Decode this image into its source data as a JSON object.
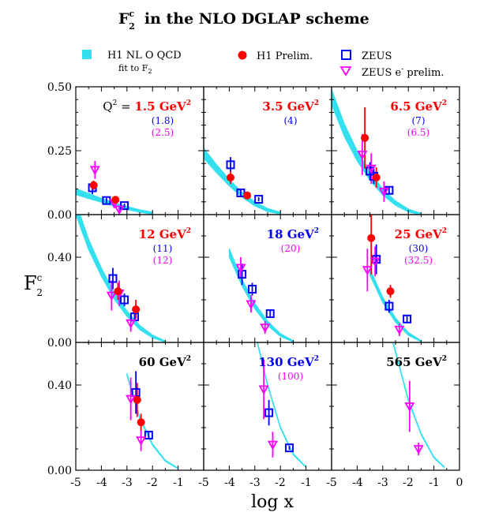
{
  "chart_data": {
    "type": "scatter",
    "title": {
      "main": "F",
      "sup": "c",
      "sub": "2",
      "rest": "in the NLO DGLAP scheme"
    },
    "xlabel": "log x",
    "ylabel": {
      "main": "F",
      "sup": "c",
      "sub": "2"
    },
    "xlim": [
      -5,
      0
    ],
    "x_ticks": [
      "-5",
      "-4",
      "-3",
      "-2",
      "-1",
      "-5",
      "-4",
      "-3",
      "-2",
      "-1",
      "-5",
      "-4",
      "-3",
      "-2",
      "-1",
      "0"
    ],
    "row_ylims": [
      [
        0,
        0.5
      ],
      [
        0,
        0.6
      ],
      [
        0,
        0.6
      ]
    ],
    "y_ticks": [
      [
        "0.00",
        "0.25",
        "0.50"
      ],
      [
        "0.00",
        "0.40"
      ],
      [
        "0.00",
        "0.40"
      ]
    ],
    "legend": {
      "band": {
        "line1": "H1 NL O QCD",
        "line2": "fit to F",
        "line2_sub": "2",
        "color": "#33e0f0"
      },
      "h1": {
        "label": "H1 Prelim.",
        "color": "#ff0000"
      },
      "zeus": {
        "label": "ZEUS",
        "color": "#0000ff"
      },
      "zeus_e": {
        "label": "ZEUS e",
        "sup": "-",
        "rest": " prelim.",
        "color": "#ff00ff"
      }
    },
    "colors": {
      "h1": "#ff0000",
      "zeus": "#0000ff",
      "zeus_e": "#ff00ff",
      "band": "#33e0f0",
      "black": "#000000"
    },
    "panels": [
      {
        "q2_prefix": "Q",
        "q2_prefix_sup": "2",
        "q2_eq": " = ",
        "q2": "1.5 GeV",
        "q2_sup": "2",
        "q2_color": "#ff0000",
        "zeus_q2": "(1.8)",
        "zeuse_q2": "(2.5)",
        "band": {
          "x": [
            -5,
            -4.5,
            -4,
            -3.5,
            -3,
            -2.5,
            -2
          ],
          "center": [
            0.09,
            0.073,
            0.056,
            0.04,
            0.026,
            0.014,
            0.006
          ],
          "width": [
            0.012,
            0.01,
            0.008,
            0.007,
            0.006,
            0.005,
            0.004
          ]
        },
        "h1": [
          {
            "x": -4.3,
            "y": 0.115,
            "err": 0.018
          },
          {
            "x": -3.45,
            "y": 0.058,
            "err": 0.012
          }
        ],
        "zeus": [
          {
            "x": -4.35,
            "y": 0.105,
            "err": 0.025
          },
          {
            "x": -3.8,
            "y": 0.055,
            "err": 0.01
          },
          {
            "x": -3.1,
            "y": 0.035,
            "err": 0.008
          }
        ],
        "zeus_e": [
          {
            "x": -4.25,
            "y": 0.175,
            "err": 0.035
          },
          {
            "x": -3.5,
            "y": 0.045,
            "err": 0.02
          },
          {
            "x": -3.3,
            "y": 0.02,
            "err": 0.01
          }
        ]
      },
      {
        "q2": "3.5 GeV",
        "q2_sup": "2",
        "q2_color": "#ff0000",
        "zeus_q2": "(4)",
        "band": {
          "x": [
            -5,
            -4.5,
            -4,
            -3.5,
            -3,
            -2.5,
            -2
          ],
          "center": [
            0.24,
            0.18,
            0.125,
            0.078,
            0.042,
            0.018,
            0.006
          ],
          "width": [
            0.02,
            0.016,
            0.013,
            0.01,
            0.008,
            0.006,
            0.004
          ]
        },
        "h1": [
          {
            "x": -3.95,
            "y": 0.145,
            "err": 0.025
          },
          {
            "x": -3.3,
            "y": 0.075,
            "err": 0.012
          }
        ],
        "zeus": [
          {
            "x": -3.95,
            "y": 0.195,
            "err": 0.03
          },
          {
            "x": -3.55,
            "y": 0.085,
            "err": 0.012
          },
          {
            "x": -2.85,
            "y": 0.06,
            "err": 0.008
          }
        ],
        "zeus_e": []
      },
      {
        "q2": "6.5 GeV",
        "q2_sup": "2",
        "q2_color": "#ff0000",
        "zeus_q2": "(7)",
        "zeuse_q2": "(6.5)",
        "band": {
          "x": [
            -5,
            -4.5,
            -4,
            -3.5,
            -3,
            -2.5,
            -2,
            -1.5
          ],
          "center": [
            0.46,
            0.33,
            0.23,
            0.15,
            0.088,
            0.045,
            0.016,
            0.002
          ],
          "width": [
            0.03,
            0.025,
            0.02,
            0.016,
            0.012,
            0.009,
            0.006,
            0.003
          ]
        },
        "h1": [
          {
            "x": -3.7,
            "y": 0.3,
            "err": 0.12
          },
          {
            "x": -3.25,
            "y": 0.145,
            "err": 0.04
          }
        ],
        "zeus": [
          {
            "x": -3.5,
            "y": 0.17,
            "err": 0.035
          },
          {
            "x": -3.35,
            "y": 0.15,
            "err": 0.03
          },
          {
            "x": -2.75,
            "y": 0.095,
            "err": 0.015
          }
        ],
        "zeus_e": [
          {
            "x": -3.8,
            "y": 0.235,
            "err": 0.08
          },
          {
            "x": -3.45,
            "y": 0.18,
            "err": 0.06
          },
          {
            "x": -2.95,
            "y": 0.09,
            "err": 0.04
          }
        ]
      },
      {
        "q2": "12 GeV",
        "q2_sup": "2",
        "q2_color": "#ff0000",
        "zeus_q2": "(11)",
        "zeuse_q2": "(12)",
        "band": {
          "x": [
            -5,
            -4.5,
            -4,
            -3.5,
            -3,
            -2.5,
            -2,
            -1.5
          ],
          "center": [
            0.63,
            0.46,
            0.33,
            0.22,
            0.135,
            0.07,
            0.028,
            0.004
          ],
          "width": [
            0.03,
            0.025,
            0.02,
            0.016,
            0.013,
            0.01,
            0.007,
            0.003
          ]
        },
        "h1": [
          {
            "x": -3.35,
            "y": 0.24,
            "err": 0.04
          },
          {
            "x": -2.65,
            "y": 0.155,
            "err": 0.045
          }
        ],
        "zeus": [
          {
            "x": -3.55,
            "y": 0.3,
            "err": 0.05
          },
          {
            "x": -3.1,
            "y": 0.2,
            "err": 0.03
          },
          {
            "x": -2.7,
            "y": 0.12,
            "err": 0.02
          }
        ],
        "zeus_e": [
          {
            "x": -3.6,
            "y": 0.22,
            "err": 0.07
          },
          {
            "x": -3.3,
            "y": 0.23,
            "err": 0.06
          },
          {
            "x": -2.85,
            "y": 0.09,
            "err": 0.04
          }
        ]
      },
      {
        "q2": "18 GeV",
        "q2_sup": "2",
        "q2_color": "#0000ff",
        "zeuse_q2": "(20)",
        "band": {
          "x": [
            -4,
            -3.5,
            -3,
            -2.5,
            -2,
            -1.5
          ],
          "center": [
            0.42,
            0.28,
            0.17,
            0.09,
            0.035,
            0.005
          ],
          "width": [
            0.02,
            0.016,
            0.013,
            0.01,
            0.007,
            0.003
          ]
        },
        "h1": [],
        "zeus": [
          {
            "x": -3.5,
            "y": 0.32,
            "err": 0.05
          },
          {
            "x": -3.1,
            "y": 0.25,
            "err": 0.03
          },
          {
            "x": -2.4,
            "y": 0.135,
            "err": 0.02
          }
        ],
        "zeus_e": [
          {
            "x": -3.55,
            "y": 0.35,
            "err": 0.05
          },
          {
            "x": -3.15,
            "y": 0.18,
            "err": 0.04
          },
          {
            "x": -2.6,
            "y": 0.07,
            "err": 0.03
          }
        ]
      },
      {
        "q2": "25 GeV",
        "q2_sup": "2",
        "q2_color": "#ff0000",
        "zeus_q2": "(30)",
        "zeuse_q2": "(32.5)",
        "band": {
          "x": [
            -3.5,
            -3,
            -2.5,
            -2,
            -1.5
          ],
          "center": [
            0.33,
            0.2,
            0.105,
            0.04,
            0.006
          ],
          "width": [
            0.016,
            0.013,
            0.01,
            0.007,
            0.003
          ]
        },
        "h1": [
          {
            "x": -3.45,
            "y": 0.49,
            "err": 0.17
          },
          {
            "x": -2.7,
            "y": 0.24,
            "err": 0.03
          }
        ],
        "zeus": [
          {
            "x": -3.25,
            "y": 0.39,
            "err": 0.07
          },
          {
            "x": -2.75,
            "y": 0.17,
            "err": 0.03
          },
          {
            "x": -2.05,
            "y": 0.11,
            "err": 0.015
          }
        ],
        "zeus_e": [
          {
            "x": -3.6,
            "y": 0.34,
            "err": 0.1
          },
          {
            "x": -3.3,
            "y": 0.38,
            "err": 0.07
          },
          {
            "x": -2.35,
            "y": 0.06,
            "err": 0.03
          }
        ]
      },
      {
        "q2": "60 GeV",
        "q2_sup": "2",
        "q2_color": "#000000",
        "band": {
          "x": [
            -3,
            -2.5,
            -2,
            -1.5,
            -1
          ],
          "center": [
            0.45,
            0.245,
            0.12,
            0.045,
            0.008
          ],
          "width": [
            0.006,
            0.005,
            0.004,
            0.003,
            0.002
          ]
        },
        "h1": [
          {
            "x": -2.6,
            "y": 0.33,
            "err": 0.08
          },
          {
            "x": -2.45,
            "y": 0.225,
            "err": 0.04
          }
        ],
        "zeus": [
          {
            "x": -2.65,
            "y": 0.365,
            "err": 0.1
          },
          {
            "x": -2.15,
            "y": 0.165,
            "err": 0.02
          }
        ],
        "zeus_e": [
          {
            "x": -2.85,
            "y": 0.335,
            "err": 0.1
          },
          {
            "x": -2.45,
            "y": 0.14,
            "err": 0.05
          }
        ]
      },
      {
        "q2": "130 GeV",
        "q2_sup": "2",
        "q2_color": "#0000ff",
        "zeuse_q2": "(100)",
        "band": {
          "x": [
            -2.9,
            -2.5,
            -2,
            -1.5,
            -1
          ],
          "center": [
            0.6,
            0.4,
            0.2,
            0.075,
            0.015
          ],
          "width": [
            0.006,
            0.005,
            0.004,
            0.003,
            0.002
          ]
        },
        "h1": [],
        "zeus": [
          {
            "x": -2.45,
            "y": 0.27,
            "err": 0.06
          },
          {
            "x": -1.65,
            "y": 0.105,
            "err": 0.01
          }
        ],
        "zeus_e": [
          {
            "x": -2.65,
            "y": 0.38,
            "err": 0.14
          },
          {
            "x": -2.3,
            "y": 0.12,
            "err": 0.06
          }
        ]
      },
      {
        "q2": "565 GeV",
        "q2_sup": "2",
        "q2_color": "#000000",
        "band": {
          "x": [
            -2.6,
            -2,
            -1.5,
            -1,
            -0.6
          ],
          "center": [
            0.6,
            0.33,
            0.17,
            0.06,
            0.015
          ],
          "width": [
            0.006,
            0.005,
            0.004,
            0.003,
            0.002
          ]
        },
        "h1": [],
        "zeus": [],
        "zeus_e": [
          {
            "x": -1.95,
            "y": 0.3,
            "err": 0.12
          },
          {
            "x": -1.6,
            "y": 0.1,
            "err": 0.03
          }
        ]
      }
    ]
  }
}
